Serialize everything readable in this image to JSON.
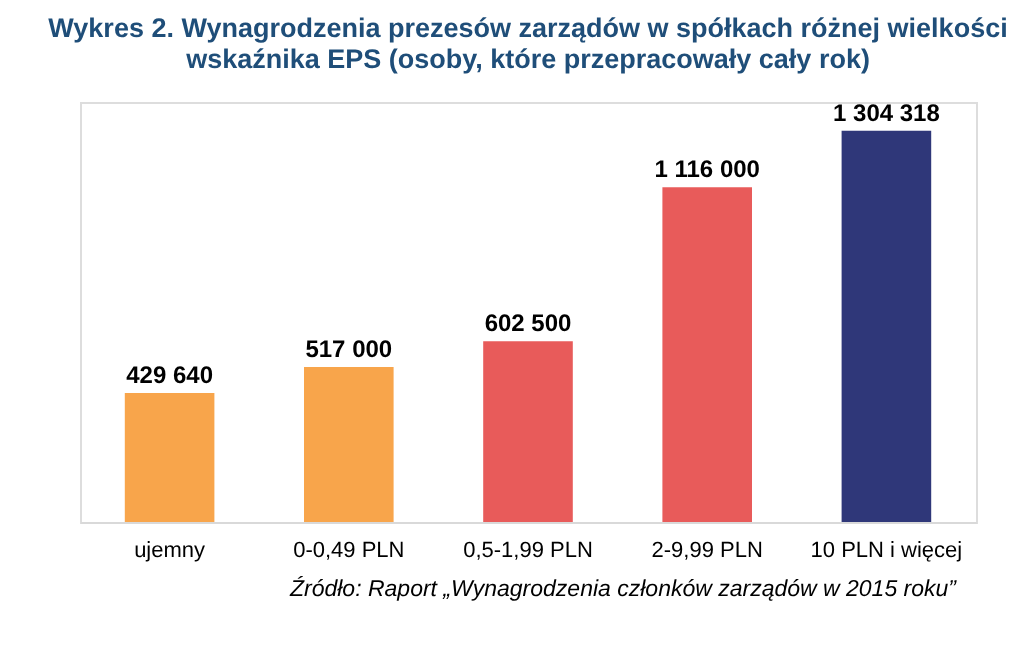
{
  "chart_data": {
    "type": "bar",
    "title": "Wykres 2. Wynagrodzenia prezesów zarządów w spółkach różnej wielkości\nwskaźnika EPS (osoby, które przepracowały cały rok)",
    "categories": [
      "ujemny",
      "0-0,49 PLN",
      "0,5-1,99 PLN",
      "2-9,99 PLN",
      "10 PLN i więcej"
    ],
    "values": [
      429640,
      517000,
      602500,
      1116000,
      1304318
    ],
    "value_labels": [
      "429 640",
      "517 000",
      "602 500",
      "1 116 000",
      "1 304 318"
    ],
    "colors": [
      "#f8a54b",
      "#f8a54b",
      "#e85b5a",
      "#e85b5a",
      "#2f3779"
    ],
    "grid": false,
    "annotations": [
      "Źródło: Raport „Wynagrodzenia członków zarządów w 2015 roku”"
    ]
  }
}
